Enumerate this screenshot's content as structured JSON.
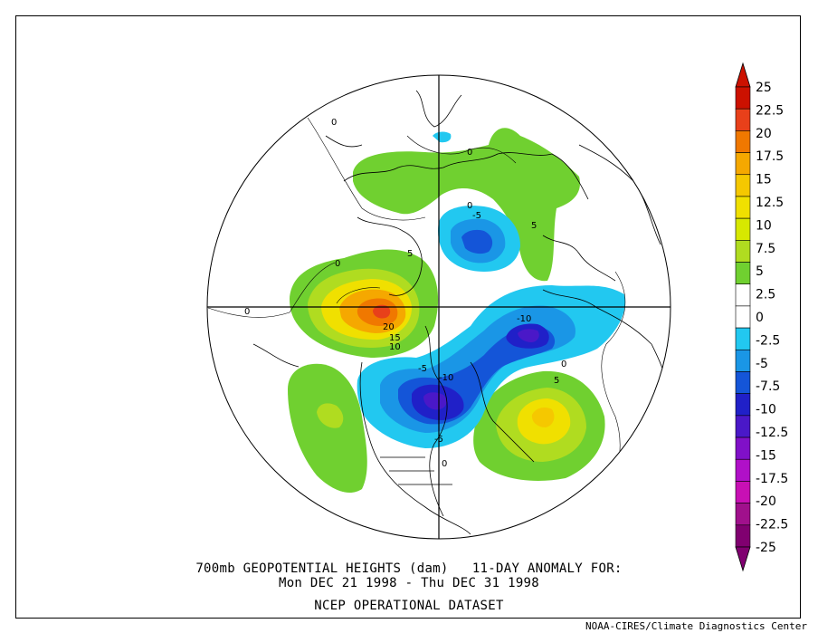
{
  "title_line1": "700mb GEOPOTENTIAL HEIGHTS (dam)   11-DAY ANOMALY FOR:",
  "title_line2": "Mon DEC 21 1998 - Thu DEC 31 1998",
  "title_line3": "NCEP OPERATIONAL DATASET",
  "credit": "NOAA-CIRES/Climate Diagnostics Center",
  "colorbar": {
    "labels": [
      "25",
      "22.5",
      "20",
      "17.5",
      "15",
      "12.5",
      "10",
      "7.5",
      "5",
      "2.5",
      "0",
      "-2.5",
      "-5",
      "-7.5",
      "-10",
      "-12.5",
      "-15",
      "-17.5",
      "-20",
      "-22.5",
      "-25"
    ],
    "colors": [
      "#cc1100",
      "#e8401a",
      "#f07800",
      "#f5a800",
      "#f5c800",
      "#f0e000",
      "#d7e800",
      "#b0dc20",
      "#70d030",
      "#ffffff",
      "#ffffff",
      "#22c8f0",
      "#1a96e6",
      "#1455d8",
      "#2020c8",
      "#4a18c8",
      "#8010c8",
      "#b010c8",
      "#c810b4",
      "#a0108c",
      "#800070"
    ]
  },
  "contour_labels": [
    "0",
    "0",
    "0",
    "0",
    "0",
    "-5",
    "5",
    "5",
    "-10",
    "20",
    "15",
    "10",
    "-5",
    "-10",
    "5",
    "0",
    "-5",
    "0"
  ]
}
